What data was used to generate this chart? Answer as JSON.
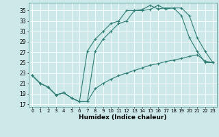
{
  "xlabel": "Humidex (Indice chaleur)",
  "background_color": "#cde8e8",
  "line_color": "#2e7d74",
  "grid_color": "#b8d8d8",
  "xlim": [
    -0.5,
    23.5
  ],
  "ylim": [
    16.5,
    36.5
  ],
  "yticks": [
    17,
    19,
    21,
    23,
    25,
    27,
    29,
    31,
    33,
    35
  ],
  "xticks": [
    0,
    1,
    2,
    3,
    4,
    5,
    6,
    7,
    8,
    9,
    10,
    11,
    12,
    13,
    14,
    15,
    16,
    17,
    18,
    19,
    20,
    21,
    22,
    23
  ],
  "line1_x": [
    0,
    1,
    2,
    3,
    4,
    5,
    6,
    7,
    8,
    9,
    10,
    11,
    12,
    13,
    14,
    15,
    16,
    17,
    18,
    19,
    20,
    21,
    22,
    23
  ],
  "line1_y": [
    22.5,
    21.0,
    20.3,
    18.8,
    19.2,
    18.2,
    17.5,
    17.5,
    20.0,
    21.0,
    21.8,
    22.5,
    23.0,
    23.5,
    24.0,
    24.5,
    24.8,
    25.2,
    25.5,
    25.8,
    26.2,
    26.5,
    25.3,
    25.0
  ],
  "line2_x": [
    0,
    1,
    2,
    3,
    4,
    5,
    6,
    7,
    8,
    9,
    10,
    11,
    12,
    13,
    14,
    15,
    16,
    17,
    18,
    19,
    20,
    21,
    22,
    23
  ],
  "line2_y": [
    22.5,
    21.0,
    20.3,
    18.8,
    19.2,
    18.2,
    17.5,
    17.5,
    27.2,
    29.5,
    31.0,
    32.5,
    33.0,
    35.0,
    35.0,
    35.2,
    36.0,
    35.3,
    35.5,
    35.5,
    34.0,
    29.8,
    27.2,
    25.0
  ],
  "line3_x": [
    0,
    1,
    2,
    3,
    4,
    5,
    6,
    7,
    8,
    9,
    10,
    11,
    12,
    13,
    14,
    15,
    16,
    17,
    18,
    19,
    20,
    21,
    22,
    23
  ],
  "line3_y": [
    22.5,
    21.0,
    20.3,
    18.8,
    19.2,
    18.2,
    17.5,
    27.2,
    29.5,
    31.0,
    32.5,
    33.0,
    35.0,
    35.0,
    35.2,
    36.0,
    35.3,
    35.5,
    35.5,
    34.0,
    29.8,
    27.2,
    25.0,
    25.0
  ]
}
